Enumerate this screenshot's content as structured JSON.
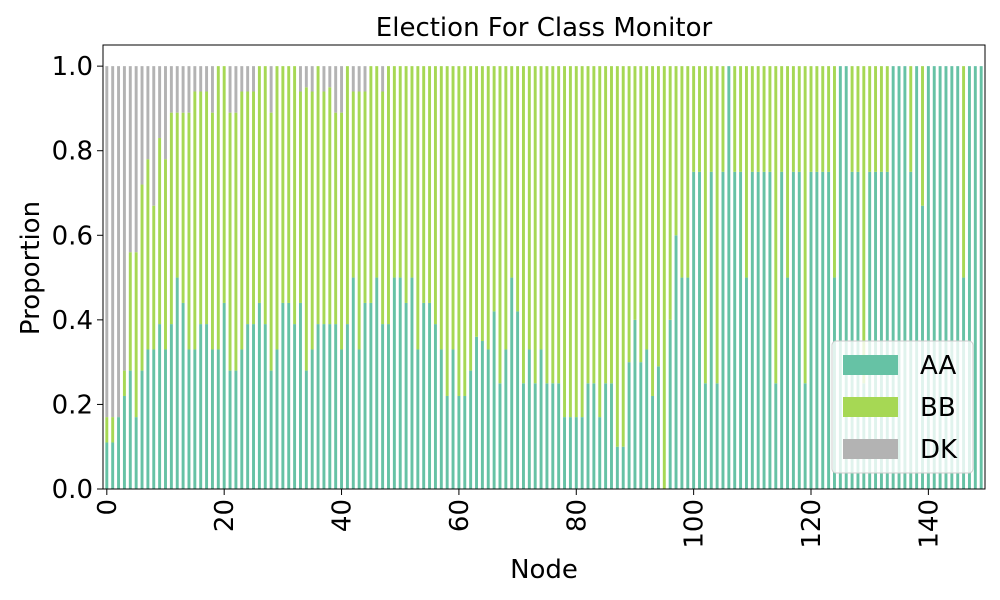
{
  "chart_data": {
    "type": "bar",
    "stacked": true,
    "title": "Election For Class Monitor",
    "xlabel": "Node",
    "ylabel": "Proportion",
    "ylim": [
      0,
      1.05
    ],
    "xlim": [
      0,
      149
    ],
    "x_ticks": [
      "0",
      "20",
      "40",
      "60",
      "80",
      "100",
      "120",
      "140"
    ],
    "y_ticks": [
      "0.0",
      "0.2",
      "0.4",
      "0.6",
      "0.8",
      "1.0"
    ],
    "legend_position": "lower-right",
    "x": [
      0,
      1,
      2,
      3,
      4,
      5,
      6,
      7,
      8,
      9,
      10,
      11,
      12,
      13,
      14,
      15,
      16,
      17,
      18,
      19,
      20,
      21,
      22,
      23,
      24,
      25,
      26,
      27,
      28,
      29,
      30,
      31,
      32,
      33,
      34,
      35,
      36,
      37,
      38,
      39,
      40,
      41,
      42,
      43,
      44,
      45,
      46,
      47,
      48,
      49,
      50,
      51,
      52,
      53,
      54,
      55,
      56,
      57,
      58,
      59,
      60,
      61,
      62,
      63,
      64,
      65,
      66,
      67,
      68,
      69,
      70,
      71,
      72,
      73,
      74,
      75,
      76,
      77,
      78,
      79,
      80,
      81,
      82,
      83,
      84,
      85,
      86,
      87,
      88,
      89,
      90,
      91,
      92,
      93,
      94,
      95,
      96,
      97,
      98,
      99,
      100,
      101,
      102,
      103,
      104,
      105,
      106,
      107,
      108,
      109,
      110,
      111,
      112,
      113,
      114,
      115,
      116,
      117,
      118,
      119,
      120,
      121,
      122,
      123,
      124,
      125,
      126,
      127,
      128,
      129,
      130,
      131,
      132,
      133,
      134,
      135,
      136,
      137,
      138,
      139,
      140,
      141,
      142,
      143,
      144,
      145,
      146,
      147,
      148,
      149
    ],
    "series": [
      {
        "name": "AA",
        "color": "#66c2a5",
        "values": [
          0.11,
          0.11,
          0.17,
          0.22,
          0.28,
          0.17,
          0.28,
          0.33,
          0.33,
          0.39,
          0.33,
          0.39,
          0.5,
          0.44,
          0.33,
          0.33,
          0.39,
          0.39,
          0.33,
          0.33,
          0.44,
          0.28,
          0.28,
          0.33,
          0.39,
          0.39,
          0.44,
          0.39,
          0.28,
          0.33,
          0.44,
          0.44,
          0.39,
          0.44,
          0.28,
          0.33,
          0.39,
          0.39,
          0.39,
          0.39,
          0.33,
          0.39,
          0.5,
          0.33,
          0.44,
          0.44,
          0.5,
          0.39,
          0.39,
          0.5,
          0.5,
          0.44,
          0.5,
          0.33,
          0.44,
          0.44,
          0.39,
          0.33,
          0.22,
          0.33,
          0.22,
          0.22,
          0.28,
          0.36,
          0.35,
          0.33,
          0.42,
          0.25,
          0.33,
          0.5,
          0.42,
          0.25,
          0.33,
          0.25,
          0.33,
          0.25,
          0.25,
          0.25,
          0.17,
          0.17,
          0.17,
          0.17,
          0.25,
          0.25,
          0.17,
          0.25,
          0.25,
          0.1,
          0.1,
          0.3,
          0.4,
          0.3,
          0.33,
          0.22,
          0.29,
          0.0,
          0.4,
          0.6,
          0.5,
          0.5,
          0.75,
          0.75,
          0.25,
          0.75,
          0.25,
          0.75,
          1.0,
          0.75,
          0.75,
          0.5,
          0.75,
          0.75,
          0.75,
          0.75,
          0.25,
          0.75,
          0.5,
          0.75,
          0.75,
          0.25,
          0.75,
          0.75,
          0.75,
          0.75,
          0.5,
          1.0,
          1.0,
          0.75,
          0.75,
          0.25,
          0.75,
          0.75,
          0.75,
          0.75,
          1.0,
          1.0,
          1.0,
          0.75,
          1.0,
          0.67,
          1.0,
          1.0,
          1.0,
          1.0,
          1.0,
          1.0,
          0.5,
          1.0,
          1.0,
          1.0
        ]
      },
      {
        "name": "BB",
        "color": "#a6d854",
        "values": [
          0.06,
          0.06,
          0.0,
          0.06,
          0.28,
          0.39,
          0.44,
          0.45,
          0.34,
          0.44,
          0.45,
          0.5,
          0.39,
          0.45,
          0.56,
          0.61,
          0.55,
          0.55,
          0.56,
          0.67,
          0.56,
          0.61,
          0.61,
          0.61,
          0.55,
          0.55,
          0.56,
          0.61,
          0.61,
          0.67,
          0.56,
          0.56,
          0.61,
          0.5,
          0.67,
          0.61,
          0.61,
          0.55,
          0.56,
          0.5,
          0.56,
          0.61,
          0.44,
          0.61,
          0.5,
          0.56,
          0.5,
          0.55,
          0.61,
          0.5,
          0.5,
          0.56,
          0.5,
          0.67,
          0.56,
          0.56,
          0.61,
          0.67,
          0.78,
          0.67,
          0.78,
          0.78,
          0.72,
          0.64,
          0.65,
          0.67,
          0.58,
          0.75,
          0.67,
          0.5,
          0.58,
          0.75,
          0.67,
          0.75,
          0.67,
          0.75,
          0.75,
          0.75,
          0.83,
          0.83,
          0.83,
          0.83,
          0.75,
          0.75,
          0.83,
          0.75,
          0.75,
          0.9,
          0.9,
          0.7,
          0.6,
          0.7,
          0.67,
          0.78,
          0.71,
          1.0,
          0.6,
          0.4,
          0.5,
          0.5,
          0.25,
          0.25,
          0.75,
          0.25,
          0.75,
          0.25,
          0.0,
          0.25,
          0.25,
          0.5,
          0.25,
          0.25,
          0.25,
          0.25,
          0.75,
          0.25,
          0.5,
          0.25,
          0.25,
          0.75,
          0.25,
          0.25,
          0.25,
          0.25,
          0.5,
          0.0,
          0.0,
          0.25,
          0.25,
          0.75,
          0.25,
          0.25,
          0.25,
          0.25,
          0.0,
          0.0,
          0.0,
          0.25,
          0.0,
          0.33,
          0.0,
          0.0,
          0.0,
          0.0,
          0.0,
          0.0,
          0.5,
          0.0,
          0.0,
          0.0
        ]
      },
      {
        "name": "DK",
        "color": "#b3b3b3",
        "values": [
          0.83,
          0.83,
          0.83,
          0.72,
          0.44,
          0.44,
          0.28,
          0.22,
          0.33,
          0.17,
          0.22,
          0.11,
          0.11,
          0.11,
          0.11,
          0.06,
          0.06,
          0.06,
          0.11,
          0.0,
          0.0,
          0.11,
          0.11,
          0.06,
          0.06,
          0.06,
          0.0,
          0.0,
          0.11,
          0.0,
          0.0,
          0.0,
          0.0,
          0.06,
          0.05,
          0.06,
          0.0,
          0.06,
          0.05,
          0.11,
          0.11,
          0.0,
          0.06,
          0.06,
          0.06,
          0.0,
          0.0,
          0.06,
          0.0,
          0.0,
          0.0,
          0.0,
          0.0,
          0.0,
          0.0,
          0.0,
          0.0,
          0.0,
          0.0,
          0.0,
          0.0,
          0.0,
          0.0,
          0.0,
          0.0,
          0.0,
          0.0,
          0.0,
          0.0,
          0.0,
          0.0,
          0.0,
          0.0,
          0.0,
          0.0,
          0.0,
          0.0,
          0.0,
          0.0,
          0.0,
          0.0,
          0.0,
          0.0,
          0.0,
          0.0,
          0.0,
          0.0,
          0.0,
          0.0,
          0.0,
          0.0,
          0.0,
          0.0,
          0.0,
          0.0,
          0.0,
          0.0,
          0.0,
          0.0,
          0.0,
          0.0,
          0.0,
          0.0,
          0.0,
          0.0,
          0.0,
          0.0,
          0.0,
          0.0,
          0.0,
          0.0,
          0.0,
          0.0,
          0.0,
          0.0,
          0.0,
          0.0,
          0.0,
          0.0,
          0.0,
          0.0,
          0.0,
          0.0,
          0.0,
          0.0,
          0.0,
          0.0,
          0.0,
          0.0,
          0.0,
          0.0,
          0.0,
          0.0,
          0.0,
          0.0,
          0.0,
          0.0,
          0.0,
          0.0,
          0.0,
          0.0,
          0.0,
          0.0,
          0.0,
          0.0,
          0.0,
          0.0,
          0.0,
          0.0,
          0.0
        ]
      }
    ]
  }
}
